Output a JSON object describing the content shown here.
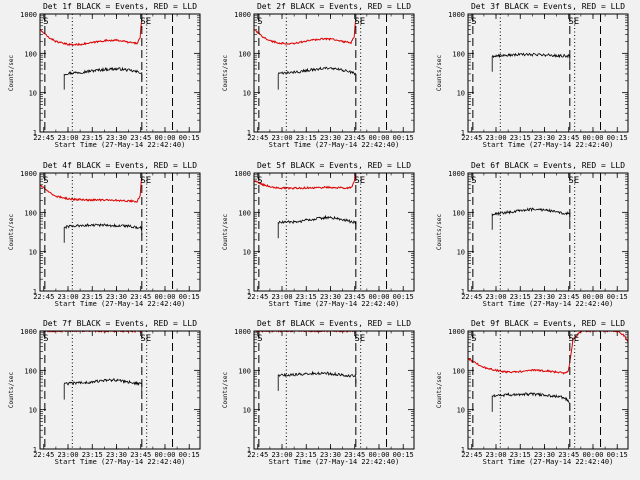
{
  "figure": {
    "background": "#f1f1f1",
    "colors": {
      "events": "#000000",
      "lld": "#dd0000",
      "markers": "#000000"
    },
    "xlabel": "Start Time (27-May-14 22:42:40)",
    "ylabel": "Counts/sec",
    "x_ticks": [
      "22:45",
      "23:00",
      "23:15",
      "23:30",
      "23:45",
      "00:00",
      "00:15"
    ],
    "y_ticks": [
      "1",
      "10",
      "100",
      "1000"
    ],
    "y_scale": "log",
    "marker_labels": {
      "start": "S",
      "end": "SE"
    }
  },
  "chart_data": [
    {
      "type": "line",
      "title": "Det 1f BLACK = Events, RED = LLD",
      "x_unit": "minutes after 22:42:40",
      "xlim": [
        0,
        99
      ],
      "ylim": [
        1,
        1000
      ],
      "y_scale": "log",
      "markers": {
        "dashed": [
          3,
          63,
          82
        ],
        "dotted": [
          20,
          66
        ]
      },
      "series": [
        {
          "name": "Events",
          "color": "#000000",
          "x": [
            15,
            20,
            25,
            30,
            35,
            40,
            45,
            50,
            55,
            60,
            63
          ],
          "y": [
            30,
            32,
            33,
            35,
            37,
            39,
            40,
            40,
            37,
            34,
            32
          ]
        },
        {
          "name": "LLD",
          "color": "#dd0000",
          "x": [
            0,
            5,
            10,
            15,
            20,
            25,
            30,
            35,
            40,
            45,
            50,
            55,
            60,
            62,
            63
          ],
          "y": [
            400,
            260,
            200,
            175,
            165,
            170,
            180,
            195,
            210,
            215,
            210,
            190,
            180,
            250,
            900
          ]
        }
      ]
    },
    {
      "type": "line",
      "title": "Det 2f BLACK = Events, RED = LLD",
      "x_unit": "minutes after 22:42:40",
      "xlim": [
        0,
        99
      ],
      "ylim": [
        1,
        1000
      ],
      "y_scale": "log",
      "markers": {
        "dashed": [
          3,
          63,
          82
        ],
        "dotted": [
          20,
          66
        ]
      },
      "series": [
        {
          "name": "Events",
          "color": "#000000",
          "x": [
            15,
            20,
            25,
            30,
            35,
            40,
            45,
            50,
            55,
            60,
            63
          ],
          "y": [
            30,
            32,
            33,
            35,
            38,
            40,
            42,
            40,
            37,
            33,
            30
          ]
        },
        {
          "name": "LLD",
          "color": "#dd0000",
          "x": [
            0,
            5,
            10,
            15,
            20,
            25,
            30,
            35,
            40,
            45,
            50,
            55,
            60,
            62,
            63
          ],
          "y": [
            400,
            270,
            210,
            185,
            175,
            180,
            195,
            215,
            230,
            235,
            225,
            200,
            185,
            260,
            900
          ]
        }
      ]
    },
    {
      "type": "line",
      "title": "Det 3f BLACK = Events, RED = LLD",
      "x_unit": "minutes after 22:42:40",
      "xlim": [
        0,
        99
      ],
      "ylim": [
        1,
        1000
      ],
      "y_scale": "log",
      "markers": {
        "dashed": [
          3,
          63,
          82
        ],
        "dotted": [
          20,
          66
        ]
      },
      "series": [
        {
          "name": "Events",
          "color": "#000000",
          "x": [
            15,
            20,
            25,
            30,
            35,
            40,
            45,
            50,
            55,
            60,
            63
          ],
          "y": [
            85,
            88,
            90,
            92,
            93,
            93,
            92,
            90,
            88,
            86,
            85
          ]
        }
      ]
    },
    {
      "type": "line",
      "title": "Det 4f BLACK = Events, RED = LLD",
      "x_unit": "minutes after 22:42:40",
      "xlim": [
        0,
        99
      ],
      "ylim": [
        1,
        1000
      ],
      "y_scale": "log",
      "markers": {
        "dashed": [
          3,
          63,
          82
        ],
        "dotted": [
          20,
          66
        ]
      },
      "series": [
        {
          "name": "Events",
          "color": "#000000",
          "x": [
            15,
            20,
            25,
            30,
            35,
            40,
            45,
            50,
            55,
            60,
            63
          ],
          "y": [
            42,
            45,
            46,
            47,
            47,
            47,
            46,
            45,
            44,
            42,
            40
          ]
        },
        {
          "name": "LLD",
          "color": "#dd0000",
          "x": [
            0,
            5,
            10,
            15,
            20,
            25,
            30,
            35,
            40,
            45,
            50,
            55,
            60,
            62,
            63
          ],
          "y": [
            500,
            330,
            260,
            230,
            215,
            210,
            205,
            205,
            205,
            205,
            200,
            195,
            190,
            260,
            950
          ]
        }
      ]
    },
    {
      "type": "line",
      "title": "Det 5f BLACK = Events, RED = LLD",
      "x_unit": "minutes after 22:42:40",
      "xlim": [
        0,
        99
      ],
      "ylim": [
        1,
        1000
      ],
      "y_scale": "log",
      "markers": {
        "dashed": [
          3,
          63,
          82
        ],
        "dotted": [
          20,
          66
        ]
      },
      "series": [
        {
          "name": "Events",
          "color": "#000000",
          "x": [
            15,
            20,
            25,
            30,
            35,
            40,
            45,
            50,
            55,
            60,
            63
          ],
          "y": [
            55,
            56,
            57,
            60,
            65,
            70,
            75,
            72,
            65,
            58,
            54
          ]
        },
        {
          "name": "LLD",
          "color": "#dd0000",
          "x": [
            0,
            5,
            10,
            15,
            20,
            25,
            30,
            35,
            40,
            45,
            50,
            55,
            60,
            62,
            63
          ],
          "y": [
            650,
            520,
            450,
            420,
            410,
            410,
            415,
            420,
            425,
            430,
            425,
            420,
            420,
            600,
            1000
          ]
        }
      ]
    },
    {
      "type": "line",
      "title": "Det 6f BLACK = Events, RED = LLD",
      "x_unit": "minutes after 22:42:40",
      "xlim": [
        0,
        99
      ],
      "ylim": [
        1,
        1000
      ],
      "y_scale": "log",
      "markers": {
        "dashed": [
          3,
          63,
          82
        ],
        "dotted": [
          20,
          66
        ]
      },
      "series": [
        {
          "name": "Events",
          "color": "#000000",
          "x": [
            15,
            20,
            25,
            30,
            35,
            40,
            45,
            50,
            55,
            60,
            63
          ],
          "y": [
            90,
            95,
            100,
            108,
            115,
            120,
            118,
            110,
            100,
            95,
            92
          ]
        }
      ]
    },
    {
      "type": "line",
      "title": "Det 7f BLACK = Events, RED = LLD",
      "x_unit": "minutes after 22:42:40",
      "xlim": [
        0,
        99
      ],
      "ylim": [
        1,
        1000
      ],
      "y_scale": "log",
      "markers": {
        "dashed": [
          3,
          63,
          82
        ],
        "dotted": [
          20,
          66
        ]
      },
      "series": [
        {
          "name": "Events",
          "color": "#000000",
          "x": [
            15,
            20,
            25,
            30,
            35,
            40,
            45,
            50,
            55,
            60,
            63
          ],
          "y": [
            45,
            47,
            48,
            50,
            52,
            55,
            57,
            55,
            50,
            47,
            45
          ]
        },
        {
          "name": "LLD",
          "color": "#dd0000",
          "x": [
            0,
            10,
            20,
            30,
            40,
            50,
            60,
            63
          ],
          "y": [
            1000,
            990,
            980,
            985,
            990,
            985,
            980,
            1000
          ]
        }
      ]
    },
    {
      "type": "line",
      "title": "Det 8f BLACK = Events, RED = LLD",
      "x_unit": "minutes after 22:42:40",
      "xlim": [
        0,
        99
      ],
      "ylim": [
        1,
        1000
      ],
      "y_scale": "log",
      "markers": {
        "dashed": [
          3,
          63,
          82
        ],
        "dotted": [
          20,
          66
        ]
      },
      "series": [
        {
          "name": "Events",
          "color": "#000000",
          "x": [
            15,
            20,
            25,
            30,
            35,
            40,
            45,
            50,
            55,
            60,
            63
          ],
          "y": [
            75,
            76,
            78,
            80,
            83,
            85,
            84,
            80,
            76,
            72,
            70
          ]
        },
        {
          "name": "LLD",
          "color": "#dd0000",
          "x": [
            0,
            10,
            20,
            30,
            40,
            50,
            60,
            63
          ],
          "y": [
            1000,
            1000,
            1000,
            1000,
            1000,
            1000,
            1000,
            1000
          ]
        }
      ]
    },
    {
      "type": "line",
      "title": "Det 9f BLACK = Events, RED = LLD",
      "x_unit": "minutes after 22:42:40",
      "xlim": [
        0,
        99
      ],
      "ylim": [
        1,
        1000
      ],
      "y_scale": "log",
      "markers": {
        "dashed": [
          3,
          63,
          82
        ],
        "dotted": [
          20,
          66
        ]
      },
      "series": [
        {
          "name": "Events",
          "color": "#000000",
          "x": [
            15,
            20,
            25,
            30,
            35,
            40,
            45,
            50,
            55,
            60,
            63
          ],
          "y": [
            22,
            23,
            24,
            24,
            25,
            25,
            24,
            23,
            22,
            20,
            15
          ]
        },
        {
          "name": "LLD",
          "color": "#dd0000",
          "x": [
            0,
            5,
            10,
            15,
            20,
            25,
            30,
            35,
            40,
            45,
            50,
            55,
            60,
            62,
            63,
            65,
            70,
            75,
            80,
            84,
            88,
            92,
            96,
            99
          ],
          "y": [
            200,
            150,
            120,
            105,
            95,
            90,
            92,
            95,
            100,
            98,
            95,
            90,
            85,
            95,
            160,
            600,
            1000,
            1000,
            1000,
            1000,
            1000,
            1000,
            800,
            550
          ]
        }
      ]
    }
  ]
}
